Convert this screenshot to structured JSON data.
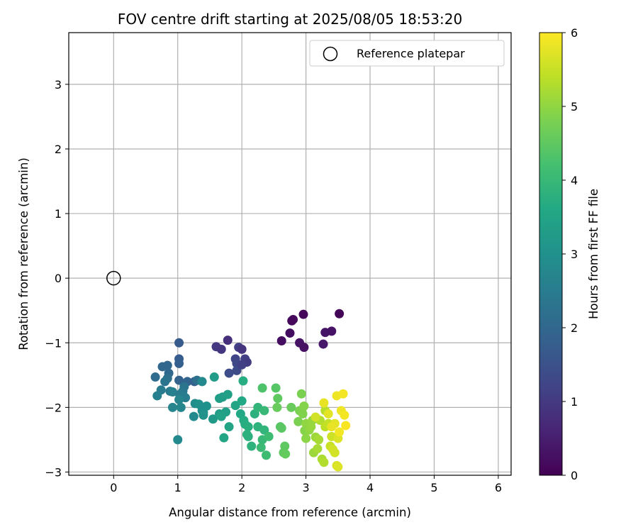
{
  "chart_data": {
    "type": "scatter",
    "title": "FOV centre drift starting at 2025/08/05 18:53:20",
    "xlabel": "Angular distance from reference (arcmin)",
    "ylabel": "Rotation from reference (arcmin)",
    "xlim": [
      -0.7,
      6.2
    ],
    "ylim": [
      -3.05,
      3.8
    ],
    "xticks": [
      0,
      1,
      2,
      3,
      4,
      5,
      6
    ],
    "yticks": [
      -3,
      -2,
      -1,
      0,
      1,
      2,
      3
    ],
    "grid": true,
    "legend": {
      "position": "top-right",
      "entries": [
        "Reference platepar"
      ]
    },
    "reference_point": {
      "x": 0,
      "y": 0,
      "label": "Reference platepar"
    },
    "colorbar": {
      "label": "Hours from first FF file",
      "range": [
        0,
        6
      ],
      "ticks": [
        0,
        1,
        2,
        3,
        4,
        5,
        6
      ],
      "colormap": "viridis"
    },
    "series": [
      {
        "points": [
          [
            2.62,
            -0.97,
            0.2
          ],
          [
            2.8,
            -0.64,
            0.15
          ],
          [
            2.96,
            -0.56,
            0.1
          ],
          [
            2.9,
            -1.0,
            0.3
          ],
          [
            2.97,
            -1.07,
            0.25
          ],
          [
            2.75,
            -0.85,
            0.2
          ],
          [
            3.3,
            -0.84,
            0.35
          ],
          [
            3.4,
            -0.82,
            0.3
          ],
          [
            3.27,
            -1.02,
            0.4
          ],
          [
            3.52,
            -0.55,
            0.05
          ],
          [
            2.78,
            -0.66,
            0.12
          ],
          [
            1.6,
            -1.06,
            1.0
          ],
          [
            1.68,
            -1.1,
            0.95
          ],
          [
            1.78,
            -0.96,
            0.8
          ],
          [
            1.95,
            -1.07,
            1.1
          ],
          [
            2.0,
            -1.1,
            0.9
          ],
          [
            1.9,
            -1.25,
            1.2
          ],
          [
            2.05,
            -1.25,
            1.1
          ],
          [
            1.92,
            -1.32,
            1.3
          ],
          [
            2.08,
            -1.3,
            1.05
          ],
          [
            1.8,
            -1.47,
            1.4
          ],
          [
            1.92,
            -1.43,
            1.35
          ],
          [
            2.0,
            -1.34,
            1.15
          ],
          [
            1.02,
            -1.0,
            1.7
          ],
          [
            1.02,
            -1.25,
            1.75
          ],
          [
            1.02,
            -1.32,
            1.8
          ],
          [
            0.76,
            -1.37,
            2.0
          ],
          [
            0.84,
            -1.35,
            2.0
          ],
          [
            0.65,
            -1.53,
            2.1
          ],
          [
            0.86,
            -1.47,
            2.05
          ],
          [
            0.84,
            -1.55,
            2.2
          ],
          [
            0.8,
            -1.6,
            2.3
          ],
          [
            1.02,
            -1.58,
            1.9
          ],
          [
            1.15,
            -1.6,
            1.95
          ],
          [
            1.26,
            -1.6,
            1.85
          ],
          [
            1.3,
            -1.58,
            2.2
          ],
          [
            1.1,
            -1.68,
            2.3
          ],
          [
            1.08,
            -1.75,
            2.4
          ],
          [
            0.74,
            -1.73,
            2.5
          ],
          [
            0.68,
            -1.82,
            2.6
          ],
          [
            0.88,
            -1.75,
            2.45
          ],
          [
            0.92,
            -1.76,
            2.6
          ],
          [
            1.03,
            -1.8,
            2.5
          ],
          [
            1.12,
            -1.85,
            2.55
          ],
          [
            1.02,
            -1.88,
            2.7
          ],
          [
            0.92,
            -2.0,
            2.7
          ],
          [
            1.05,
            -2.0,
            2.75
          ],
          [
            1.27,
            -1.94,
            2.9
          ],
          [
            1.33,
            -1.95,
            3.0
          ],
          [
            1.38,
            -2.05,
            2.95
          ],
          [
            1.4,
            -2.08,
            3.0
          ],
          [
            1.45,
            -1.98,
            3.0
          ],
          [
            1.4,
            -2.12,
            3.05
          ],
          [
            1.25,
            -2.14,
            2.85
          ],
          [
            1.0,
            -2.5,
            2.8
          ],
          [
            1.38,
            -1.6,
            2.8
          ],
          [
            1.57,
            -1.53,
            3.3
          ],
          [
            1.55,
            -2.18,
            3.2
          ],
          [
            1.65,
            -2.1,
            3.3
          ],
          [
            1.7,
            -1.84,
            3.3
          ],
          [
            1.65,
            -1.86,
            3.35
          ],
          [
            1.78,
            -1.8,
            3.4
          ],
          [
            1.75,
            -2.07,
            3.4
          ],
          [
            1.68,
            -2.14,
            3.45
          ],
          [
            1.9,
            -1.97,
            3.5
          ],
          [
            1.8,
            -2.3,
            3.5
          ],
          [
            1.72,
            -2.47,
            3.5
          ],
          [
            2.0,
            -1.9,
            3.6
          ],
          [
            2.02,
            -1.59,
            3.7
          ],
          [
            1.98,
            -2.1,
            3.6
          ],
          [
            2.03,
            -2.2,
            3.65
          ],
          [
            2.05,
            -2.26,
            3.7
          ],
          [
            2.1,
            -2.3,
            3.75
          ],
          [
            2.08,
            -2.42,
            3.8
          ],
          [
            2.1,
            -2.45,
            3.8
          ],
          [
            2.15,
            -2.6,
            3.85
          ],
          [
            2.2,
            -2.1,
            3.8
          ],
          [
            2.25,
            -2.0,
            3.9
          ],
          [
            2.25,
            -2.3,
            3.85
          ],
          [
            2.35,
            -2.05,
            4.0
          ],
          [
            2.35,
            -2.35,
            3.9
          ],
          [
            2.32,
            -2.5,
            4.0
          ],
          [
            2.3,
            -2.62,
            4.05
          ],
          [
            2.42,
            -2.45,
            4.1
          ],
          [
            2.38,
            -2.74,
            4.1
          ],
          [
            2.32,
            -1.7,
            4.3
          ],
          [
            2.53,
            -1.7,
            4.4
          ],
          [
            2.56,
            -1.86,
            4.5
          ],
          [
            2.6,
            -2.3,
            4.4
          ],
          [
            2.62,
            -2.32,
            4.45
          ],
          [
            2.67,
            -2.6,
            4.5
          ],
          [
            2.65,
            -2.7,
            4.5
          ],
          [
            2.68,
            -2.72,
            4.55
          ],
          [
            2.55,
            -2.0,
            4.6
          ],
          [
            2.77,
            -2.0,
            4.6
          ],
          [
            2.93,
            -1.79,
            4.8
          ],
          [
            2.9,
            -2.05,
            4.8
          ],
          [
            2.97,
            -1.98,
            4.9
          ],
          [
            2.95,
            -2.1,
            4.85
          ],
          [
            2.88,
            -2.22,
            4.8
          ],
          [
            2.98,
            -2.36,
            4.9
          ],
          [
            3.0,
            -2.48,
            4.95
          ],
          [
            3.0,
            -2.25,
            5.0
          ],
          [
            3.05,
            -2.35,
            5.0
          ],
          [
            3.1,
            -2.2,
            5.05
          ],
          [
            3.08,
            -2.3,
            5.05
          ],
          [
            3.15,
            -2.46,
            5.1
          ],
          [
            3.12,
            -2.7,
            5.1
          ],
          [
            3.18,
            -2.64,
            5.2
          ],
          [
            3.2,
            -2.5,
            5.2
          ],
          [
            3.25,
            -2.8,
            5.25
          ],
          [
            3.28,
            -2.85,
            5.3
          ],
          [
            3.22,
            -2.2,
            5.3
          ],
          [
            3.3,
            -2.05,
            5.35
          ],
          [
            3.3,
            -2.3,
            5.4
          ],
          [
            3.35,
            -2.25,
            5.45
          ],
          [
            3.38,
            -2.6,
            5.5
          ],
          [
            3.4,
            -2.45,
            5.55
          ],
          [
            3.42,
            -2.65,
            5.6
          ],
          [
            3.45,
            -2.7,
            5.6
          ],
          [
            3.48,
            -2.9,
            5.65
          ],
          [
            3.5,
            -2.92,
            5.7
          ],
          [
            3.5,
            -2.48,
            5.7
          ],
          [
            3.45,
            -2.25,
            5.75
          ],
          [
            3.4,
            -2.3,
            5.8
          ],
          [
            3.48,
            -1.82,
            5.85
          ],
          [
            3.58,
            -1.79,
            5.9
          ],
          [
            3.55,
            -2.05,
            5.85
          ],
          [
            3.6,
            -2.12,
            5.9
          ],
          [
            3.62,
            -2.28,
            5.95
          ],
          [
            3.52,
            -2.38,
            5.9
          ],
          [
            3.28,
            -1.93,
            5.8
          ],
          [
            3.35,
            -2.1,
            5.75
          ],
          [
            3.15,
            -2.15,
            5.6
          ]
        ]
      }
    ]
  }
}
